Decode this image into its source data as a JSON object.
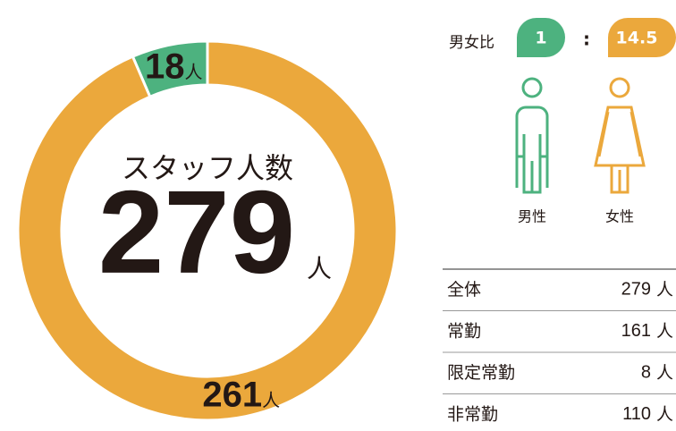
{
  "chart_data": {
    "type": "donut",
    "categories": [
      "男性",
      "女性"
    ],
    "values": [
      18,
      261
    ],
    "colors": [
      "#4db27f",
      "#eba83c"
    ],
    "unit": "人",
    "center_title": "スタッフ人数",
    "total": 279
  },
  "ratio": {
    "label": "男女比",
    "male": 1,
    "separator": ":",
    "female": 14.5
  },
  "table": {
    "unit": "人",
    "rows": [
      [
        "全体",
        279
      ],
      [
        "常勤",
        161
      ],
      [
        "限定常勤",
        8
      ],
      [
        "非常勤",
        110
      ]
    ]
  }
}
